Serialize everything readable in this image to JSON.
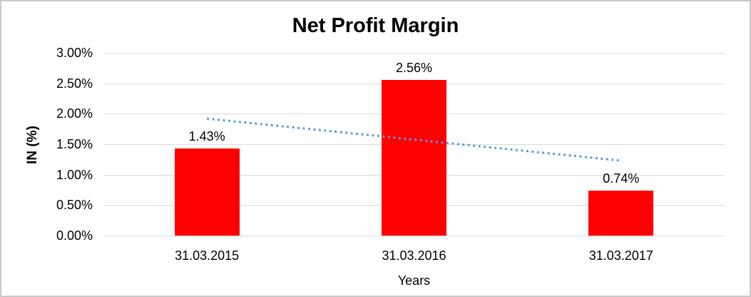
{
  "chart_data": {
    "type": "bar",
    "title": "Net Profit Margin",
    "xlabel": "Years",
    "ylabel": "IN (%)",
    "categories": [
      "31.03.2015",
      "31.03.2016",
      "31.03.2017"
    ],
    "values": [
      1.43,
      2.56,
      0.74
    ],
    "data_labels": [
      "1.43%",
      "2.56%",
      "0.74%"
    ],
    "ylim": [
      0,
      3
    ],
    "ytick_step": 0.5,
    "ytick_labels": [
      "0.00%",
      "0.50%",
      "1.00%",
      "1.50%",
      "2.00%",
      "2.50%",
      "3.00%"
    ],
    "grid": true,
    "legend": "none",
    "bar_color": "#FF0000",
    "trendline": {
      "type": "linear",
      "style": "dotted",
      "color": "#5B9BD5",
      "start": {
        "category_index": 0,
        "value": 1.92
      },
      "end": {
        "category_index": 2,
        "value": 1.23
      }
    }
  },
  "colors": {
    "background": "#FFFFFF",
    "frame_border": "#C9C9C9",
    "gridline": "#D9D9D9",
    "text": "#000000"
  }
}
